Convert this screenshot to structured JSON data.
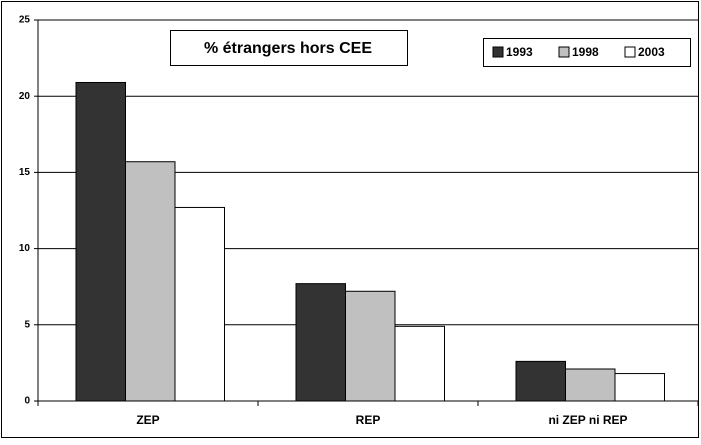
{
  "chart_data": {
    "type": "bar",
    "title": "% étrangers hors CEE",
    "categories": [
      "ZEP",
      "REP",
      "ni ZEP ni REP"
    ],
    "series": [
      {
        "name": "1993",
        "color": "#333333",
        "values": [
          20.9,
          7.7,
          2.6
        ]
      },
      {
        "name": "1998",
        "color": "#c0c0c0",
        "values": [
          15.7,
          7.2,
          2.1
        ]
      },
      {
        "name": "2003",
        "color": "#ffffff",
        "values": [
          12.7,
          4.9,
          1.8
        ]
      }
    ],
    "ylim": [
      0,
      25
    ],
    "yticks": [
      0,
      5,
      10,
      15,
      20,
      25
    ],
    "grid": true,
    "legend": "top-right"
  }
}
